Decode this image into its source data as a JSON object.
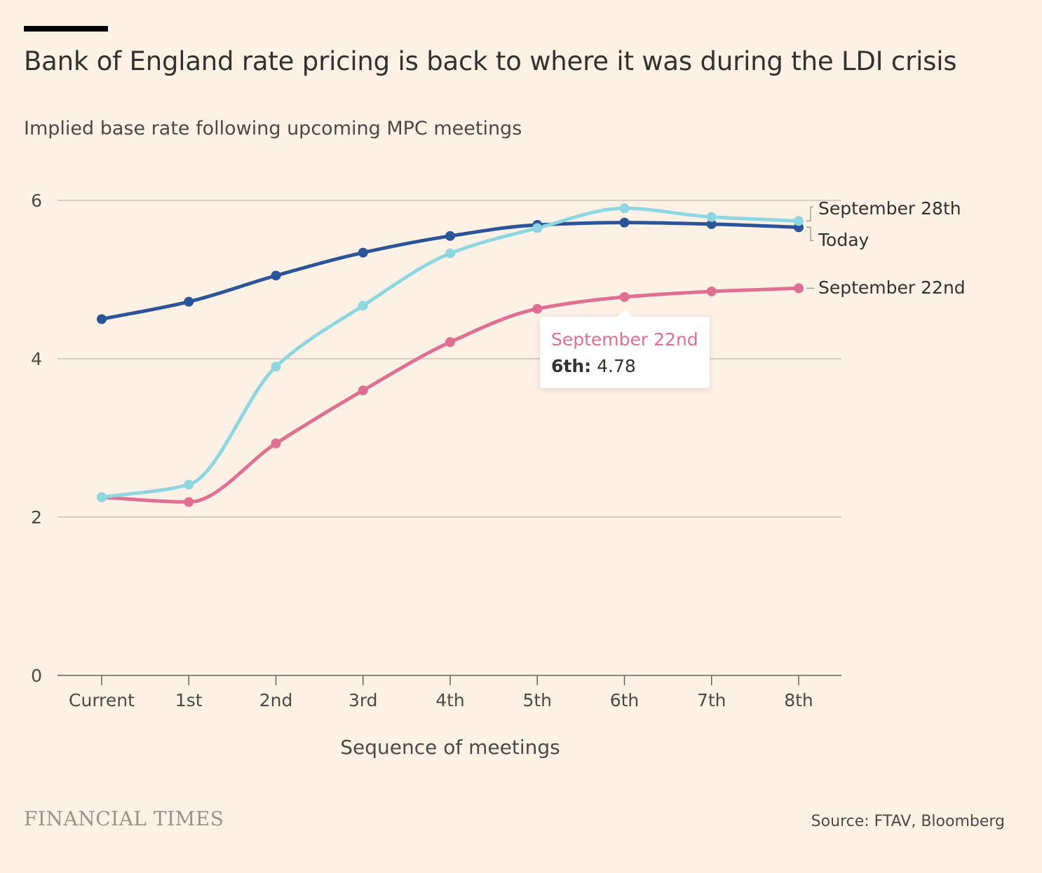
{
  "header": {
    "title": "Bank of England rate pricing is back to where it was during the LDI crisis",
    "subtitle": "Implied base rate following upcoming MPC meetings"
  },
  "footer": {
    "brand": "FINANCIAL TIMES",
    "source": "Source: FTAV, Bloomberg"
  },
  "tooltip": {
    "series": "September 22nd",
    "category": "6th:",
    "value": "4.78"
  },
  "chart_data": {
    "type": "line",
    "title": "Bank of England rate pricing is back to where it was during the LDI crisis",
    "subtitle": "Implied base rate following upcoming MPC meetings",
    "xlabel": "Sequence of meetings",
    "ylabel": "",
    "categories": [
      "Current",
      "1st",
      "2nd",
      "3rd",
      "4th",
      "5th",
      "6th",
      "7th",
      "8th"
    ],
    "ylim": [
      0,
      6
    ],
    "yticks": [
      0,
      2,
      4,
      6
    ],
    "grid": true,
    "series": [
      {
        "name": "Today",
        "color": "#2a5599",
        "values": [
          4.5,
          4.72,
          5.05,
          5.34,
          5.55,
          5.69,
          5.72,
          5.7,
          5.66
        ]
      },
      {
        "name": "September 28th",
        "color": "#8ed7e2",
        "values": [
          2.25,
          2.41,
          3.9,
          4.67,
          5.33,
          5.65,
          5.9,
          5.79,
          5.74
        ]
      },
      {
        "name": "September 22nd",
        "color": "#e07092",
        "values": [
          2.25,
          2.19,
          2.93,
          3.6,
          4.21,
          4.63,
          4.78,
          4.85,
          4.89
        ]
      }
    ]
  }
}
